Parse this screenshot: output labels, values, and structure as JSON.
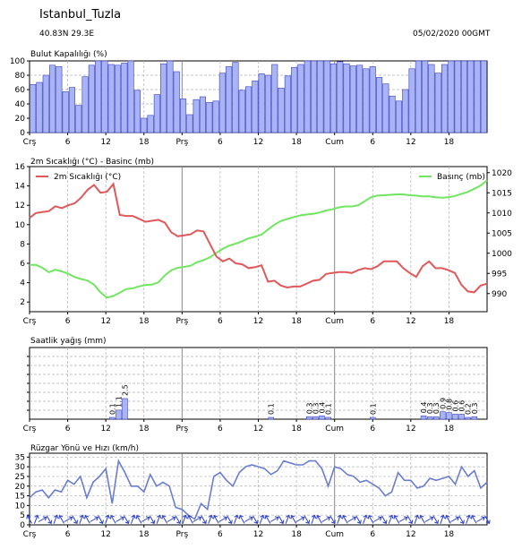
{
  "header": {
    "station": "Istanbul_Tuzla",
    "coords": "40.83N   29.3E",
    "datetime": "05/02/2020 00GMT"
  },
  "colors": {
    "bar_fill": "#a9b4f6",
    "bar_edge": "#3940c0",
    "temp": "#e0585a",
    "pressure": "#71e562",
    "wind": "#6b7dd0",
    "arrow": "#2b3ec8",
    "day_line": "#888888",
    "grid": "#b0b0b0"
  },
  "chart_data": [
    {
      "type": "bar",
      "title": "Bulut Kapalılığı (%)",
      "ylim": [
        0,
        100
      ],
      "yticks": [
        0,
        20,
        40,
        60,
        80,
        100
      ],
      "xticks": [
        "Crş",
        "6",
        "12",
        "18",
        "Prş",
        "6",
        "12",
        "18",
        "Cum",
        "6",
        "12",
        "18"
      ],
      "grid": true,
      "values": [
        67,
        70,
        80,
        94,
        92,
        57,
        63,
        38,
        78,
        94,
        100,
        100,
        95,
        94,
        97,
        100,
        59,
        20,
        24,
        53,
        96,
        100,
        85,
        47,
        25,
        46,
        50,
        42,
        44,
        83,
        92,
        98,
        59,
        64,
        72,
        82,
        80,
        95,
        62,
        79,
        91,
        95,
        100,
        100,
        100,
        100,
        96,
        99,
        96,
        93,
        94,
        89,
        92,
        77,
        68,
        51,
        44,
        60,
        89,
        100,
        100,
        95,
        83,
        95,
        100,
        100,
        100,
        100,
        100,
        100
      ]
    },
    {
      "type": "line",
      "title": "2m Sıcaklığı (°C) - Basinc (mb)",
      "ylim": [
        1,
        16
      ],
      "yticks": [
        2,
        4,
        6,
        8,
        10,
        12,
        14,
        16
      ],
      "y2lim": [
        985.5,
        1021.5
      ],
      "y2ticks": [
        990,
        995,
        1000,
        1005,
        1010,
        1015,
        1020
      ],
      "xticks": [
        "Crş",
        "6",
        "12",
        "18",
        "Prş",
        "6",
        "12",
        "18",
        "Cum",
        "6",
        "12",
        "18"
      ],
      "legend_placement": "top",
      "series": [
        {
          "name": "2m Sıcaklığı (°C)",
          "axis": "left",
          "values": [
            10.7,
            11.2,
            11.3,
            11.4,
            11.9,
            11.7,
            12.0,
            12.2,
            12.8,
            13.6,
            14.1,
            13.3,
            13.4,
            14.2,
            11.0,
            10.9,
            10.9,
            10.6,
            10.3,
            10.4,
            10.5,
            10.2,
            9.2,
            8.8,
            8.9,
            9.0,
            9.4,
            9.3,
            8.0,
            6.7,
            6.2,
            6.5,
            6.0,
            5.9,
            5.5,
            5.6,
            5.8,
            4.1,
            4.2,
            3.7,
            3.5,
            3.6,
            3.6,
            3.9,
            4.2,
            4.3,
            4.9,
            5.0,
            5.1,
            5.1,
            5.0,
            5.3,
            5.5,
            5.4,
            5.7,
            6.2,
            6.2,
            6.2,
            5.5,
            5.0,
            4.6,
            5.7,
            6.2,
            5.5,
            5.5,
            5.3,
            5.0,
            3.8,
            3.1,
            3.0,
            3.7,
            3.9
          ]
        },
        {
          "name": "Basınç (mb)",
          "axis": "right",
          "values": [
            997.1,
            997.1,
            996.4,
            995.3,
            995.9,
            995.5,
            994.9,
            994.1,
            993.6,
            993.2,
            992.2,
            990.3,
            989.0,
            989.4,
            990.2,
            991.1,
            991.3,
            991.8,
            992.1,
            992.2,
            992.8,
            994.5,
            995.8,
            996.4,
            996.6,
            996.9,
            997.8,
            998.3,
            999.0,
            1000.1,
            1001.1,
            1001.9,
            1002.4,
            1003.0,
            1003.7,
            1004.1,
            1004.6,
            1005.9,
            1007.1,
            1008.0,
            1008.5,
            1009.0,
            1009.4,
            1009.6,
            1009.8,
            1010.1,
            1010.6,
            1010.9,
            1011.4,
            1011.6,
            1011.6,
            1011.9,
            1012.9,
            1013.9,
            1014.3,
            1014.4,
            1014.5,
            1014.6,
            1014.6,
            1014.4,
            1014.3,
            1014.1,
            1014.1,
            1013.9,
            1013.8,
            1013.9,
            1014.2,
            1014.7,
            1015.2,
            1016.0,
            1016.8,
            1018.1
          ]
        }
      ]
    },
    {
      "type": "bar",
      "title": "Saatlik yağış (mm)",
      "xticks": [
        "Crş",
        "6",
        "12",
        "18",
        "Prş",
        "6",
        "12",
        "18",
        "Cum",
        "6",
        "12",
        "18"
      ],
      "grid": true,
      "points": [
        {
          "hour": 13,
          "value": 0.1
        },
        {
          "hour": 14,
          "value": 1.1
        },
        {
          "hour": 15,
          "value": 2.5
        },
        {
          "hour": 38,
          "value": 0.1
        },
        {
          "hour": 44,
          "value": 0.3
        },
        {
          "hour": 45,
          "value": 0.3
        },
        {
          "hour": 46,
          "value": 0.4
        },
        {
          "hour": 47,
          "value": 0.1
        },
        {
          "hour": 54,
          "value": 0.1
        },
        {
          "hour": 62,
          "value": 0.4
        },
        {
          "hour": 63,
          "value": 0.3
        },
        {
          "hour": 64,
          "value": 0.3
        },
        {
          "hour": 65,
          "value": 0.9
        },
        {
          "hour": 66,
          "value": 0.8
        },
        {
          "hour": 67,
          "value": 0.6
        },
        {
          "hour": 68,
          "value": 0.6
        },
        {
          "hour": 69,
          "value": 0.2
        },
        {
          "hour": 70,
          "value": 0.3
        }
      ]
    },
    {
      "type": "line",
      "title": "Rüzgar Yönü ve Hızı (km/h)",
      "ylim": [
        0,
        37
      ],
      "yticks": [
        0,
        5,
        10,
        15,
        20,
        25,
        30,
        35
      ],
      "xticks": [
        "Crş",
        "6",
        "12",
        "18",
        "Prş",
        "6",
        "12",
        "18",
        "Cum",
        "6",
        "12",
        "18"
      ],
      "grid": true,
      "series": [
        {
          "name": "",
          "values": [
            14,
            17,
            18,
            14,
            18,
            17,
            23,
            21,
            25,
            14,
            22,
            25,
            29,
            11,
            33,
            27,
            20,
            20,
            17,
            26,
            20,
            22,
            20,
            9,
            8,
            5,
            3,
            11,
            8,
            25,
            27,
            23,
            20,
            27,
            30,
            31,
            30,
            29,
            26,
            28,
            33,
            32,
            31,
            31,
            33,
            33,
            29,
            20,
            30,
            29,
            26,
            25,
            22,
            23,
            21,
            19,
            15,
            17,
            27,
            23,
            23,
            19,
            20,
            24,
            23,
            24,
            25,
            21,
            30,
            25,
            28,
            19,
            22
          ]
        }
      ],
      "wind_direction_deg": [
        150,
        200,
        240,
        330,
        200,
        150,
        240,
        330,
        200,
        150,
        240,
        330,
        200,
        150,
        240,
        330,
        200,
        150,
        240,
        330,
        200,
        150,
        240,
        330,
        200,
        150,
        240,
        330,
        200,
        150,
        240,
        330,
        200,
        150,
        240,
        330,
        200,
        150,
        240,
        330,
        200,
        150,
        240,
        330,
        200,
        150,
        240,
        330,
        200,
        150,
        240,
        330,
        200,
        150,
        240,
        330,
        200,
        150,
        240,
        330,
        200,
        150,
        240,
        330,
        200,
        150,
        240,
        330,
        200,
        150,
        240,
        330
      ]
    }
  ]
}
